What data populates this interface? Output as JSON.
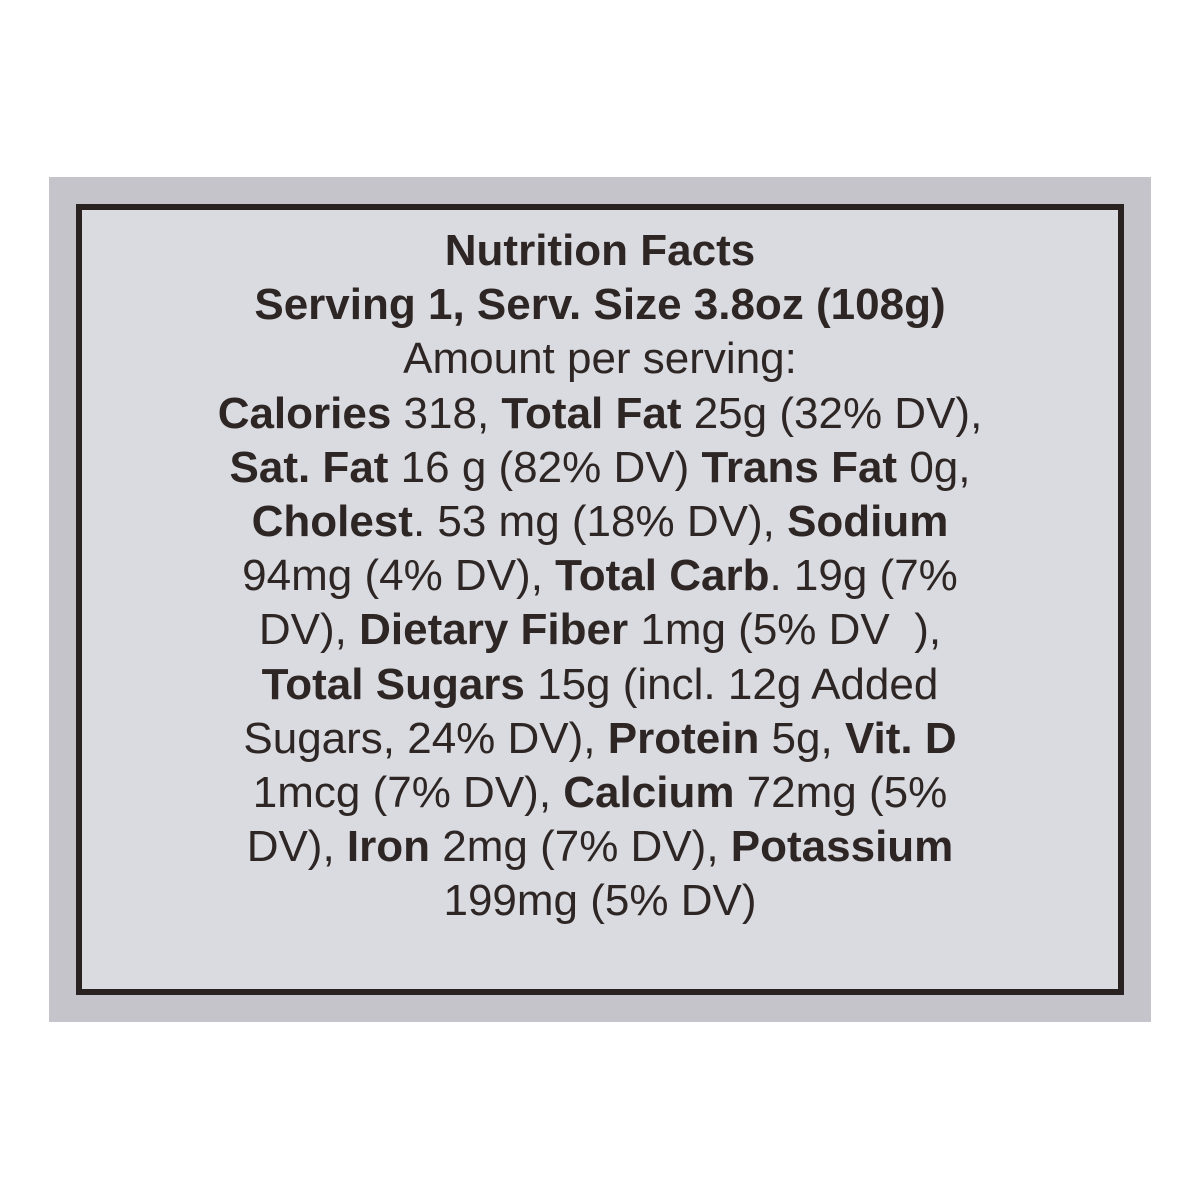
{
  "label": {
    "lines": [
      [
        {
          "t": "Nutrition Facts",
          "b": true
        }
      ],
      [
        {
          "t": "Serving 1, Serv. Size 3.8oz (108g)",
          "b": true
        }
      ],
      [
        {
          "t": "Amount per serving:",
          "b": false
        }
      ],
      [
        {
          "t": "Calories",
          "b": true
        },
        {
          "t": " 318, ",
          "b": false
        },
        {
          "t": "Total Fat",
          "b": true
        },
        {
          "t": " 25g (32% DV),",
          "b": false
        }
      ],
      [
        {
          "t": "Sat. Fat",
          "b": true
        },
        {
          "t": " 16 g (82% DV) ",
          "b": false
        },
        {
          "t": "Trans Fat",
          "b": true
        },
        {
          "t": " 0g,",
          "b": false
        }
      ],
      [
        {
          "t": "Cholest",
          "b": true
        },
        {
          "t": ". 53 mg (18% DV), ",
          "b": false
        },
        {
          "t": "Sodium",
          "b": true
        }
      ],
      [
        {
          "t": "94mg (4% DV), ",
          "b": false
        },
        {
          "t": "Total Carb",
          "b": true
        },
        {
          "t": ". 19g (7%",
          "b": false
        }
      ],
      [
        {
          "t": "DV), ",
          "b": false
        },
        {
          "t": "Dietary Fiber",
          "b": true
        },
        {
          "t": " 1mg (5% DV  ),",
          "b": false
        }
      ],
      [
        {
          "t": "Total Sugars",
          "b": true
        },
        {
          "t": " 15g (incl. 12g Added",
          "b": false
        }
      ],
      [
        {
          "t": "Sugars, 24% DV), ",
          "b": false
        },
        {
          "t": "Protein",
          "b": true
        },
        {
          "t": " 5g, ",
          "b": false
        },
        {
          "t": "Vit. D",
          "b": true
        }
      ],
      [
        {
          "t": "1mcg (7% DV), ",
          "b": false
        },
        {
          "t": "Calcium",
          "b": true
        },
        {
          "t": " 72mg (5%",
          "b": false
        }
      ],
      [
        {
          "t": "DV), ",
          "b": false
        },
        {
          "t": "Iron",
          "b": true
        },
        {
          "t": " 2mg (7% DV), ",
          "b": false
        },
        {
          "t": "Potassium",
          "b": true
        }
      ],
      [
        {
          "t": "199mg (5% DV)",
          "b": false
        }
      ]
    ]
  },
  "colors": {
    "text": "#2e2624",
    "border": "#2a2220",
    "label_bg": "#d9dbe0",
    "panel_bg": "#c5c4cb"
  }
}
